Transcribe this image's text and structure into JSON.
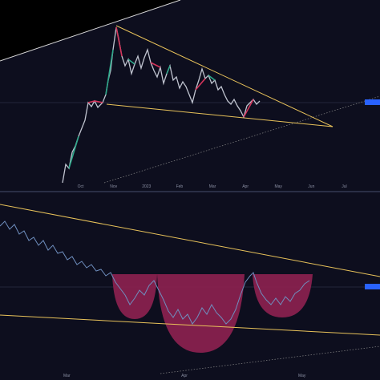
{
  "top_chart": {
    "x_labels": [
      "Oct",
      "Nov",
      "2023",
      "Feb",
      "Mar",
      "Apr",
      "May",
      "Jun",
      "Jul"
    ]
  },
  "bottom_chart": {
    "x_labels": [
      "Mar",
      "Apr",
      "May"
    ]
  }
}
